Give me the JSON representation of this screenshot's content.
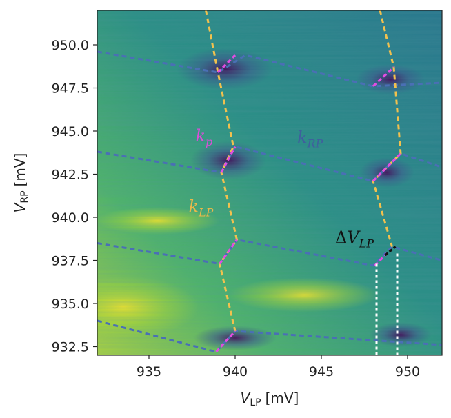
{
  "chart_data": {
    "type": "heatmap",
    "title": "",
    "xlabel": {
      "var": "V",
      "sub": "LP",
      "unit": "[mV]"
    },
    "ylabel": {
      "var": "V",
      "sub": "RP",
      "unit": "[mV]"
    },
    "xlim": [
      932.0,
      952.0
    ],
    "ylim": [
      932.0,
      952.0
    ],
    "xticks": [
      935,
      940,
      945,
      950
    ],
    "xtick_labels": [
      "935",
      "940",
      "945",
      "950"
    ],
    "yticks": [
      932.5,
      935.0,
      937.5,
      940.0,
      942.5,
      945.0,
      947.5,
      950.0
    ],
    "ytick_labels": [
      "932.5",
      "935.0",
      "937.5",
      "940.0",
      "942.5",
      "945.0",
      "947.5",
      "950.0"
    ],
    "colormap": [
      "#440154",
      "#3b528b",
      "#21918c",
      "#5ec962",
      "#fde725"
    ],
    "line_colors": {
      "lp": "#f2c14e",
      "rp": "#4a6fb5",
      "p": "#e34ce3",
      "delta": "#111111",
      "bracket": "#ffffff"
    },
    "annotations": [
      {
        "id": "k-p",
        "base": "k",
        "sub": "p",
        "x": 937.7,
        "y": 944.4,
        "color": "#d94fd9"
      },
      {
        "id": "k-rp",
        "base": "k",
        "sub": "RP",
        "x": 943.6,
        "y": 944.3,
        "color": "#3f5f9e"
      },
      {
        "id": "k-lp",
        "base": "k",
        "sub": "LP",
        "x": 937.3,
        "y": 940.3,
        "color": "#e8b84a"
      },
      {
        "id": "delta-vlp",
        "base": "ΔV",
        "sub": "LP",
        "x": 945.8,
        "y": 938.5,
        "color": "#111111"
      }
    ],
    "lp_lines": [
      [
        [
          938.3,
          952.0
        ],
        [
          939.0,
          948.4
        ],
        [
          939.9,
          944.1
        ],
        [
          939.2,
          942.6
        ],
        [
          940.1,
          938.7
        ],
        [
          939.1,
          937.3
        ],
        [
          940.0,
          933.4
        ]
      ],
      [
        [
          948.4,
          952.0
        ],
        [
          949.2,
          948.7
        ],
        [
          949.6,
          943.7
        ],
        [
          948.0,
          942.1
        ],
        [
          949.1,
          938.3
        ]
      ]
    ],
    "rp_lines": [
      [
        [
          932.0,
          949.6
        ],
        [
          939.0,
          948.4
        ],
        [
          940.6,
          949.4
        ],
        [
          948.0,
          947.6
        ],
        [
          952.0,
          947.8
        ]
      ],
      [
        [
          932.0,
          943.8
        ],
        [
          939.2,
          942.6
        ],
        [
          940.0,
          944.1
        ],
        [
          948.0,
          942.1
        ],
        [
          949.6,
          943.7
        ],
        [
          952.0,
          942.9
        ]
      ],
      [
        [
          932.0,
          938.5
        ],
        [
          939.1,
          937.3
        ],
        [
          940.1,
          938.7
        ],
        [
          948.0,
          937.2
        ],
        [
          949.1,
          938.3
        ],
        [
          952.0,
          937.5
        ]
      ],
      [
        [
          932.0,
          934.0
        ],
        [
          938.9,
          932.2
        ],
        [
          940.0,
          933.4
        ],
        [
          952.0,
          932.6
        ]
      ]
    ],
    "p_segments": [
      [
        [
          939.0,
          948.4
        ],
        [
          940.0,
          949.4
        ]
      ],
      [
        [
          939.2,
          942.6
        ],
        [
          940.0,
          944.1
        ]
      ],
      [
        [
          939.1,
          937.3
        ],
        [
          940.1,
          938.7
        ]
      ],
      [
        [
          938.9,
          932.2
        ],
        [
          940.0,
          933.4
        ]
      ],
      [
        [
          948.0,
          947.6
        ],
        [
          949.2,
          948.7
        ]
      ],
      [
        [
          948.0,
          942.1
        ],
        [
          949.6,
          943.7
        ]
      ],
      [
        [
          948.1,
          937.2
        ],
        [
          948.8,
          937.9
        ]
      ]
    ],
    "delta_segment": [
      [
        948.7,
        937.8
      ],
      [
        949.3,
        938.3
      ]
    ],
    "delta_bracket": [
      [
        [
          948.2,
          937.3
        ],
        [
          948.2,
          932.0
        ]
      ],
      [
        [
          949.4,
          937.9
        ],
        [
          949.4,
          932.0
        ]
      ]
    ]
  }
}
